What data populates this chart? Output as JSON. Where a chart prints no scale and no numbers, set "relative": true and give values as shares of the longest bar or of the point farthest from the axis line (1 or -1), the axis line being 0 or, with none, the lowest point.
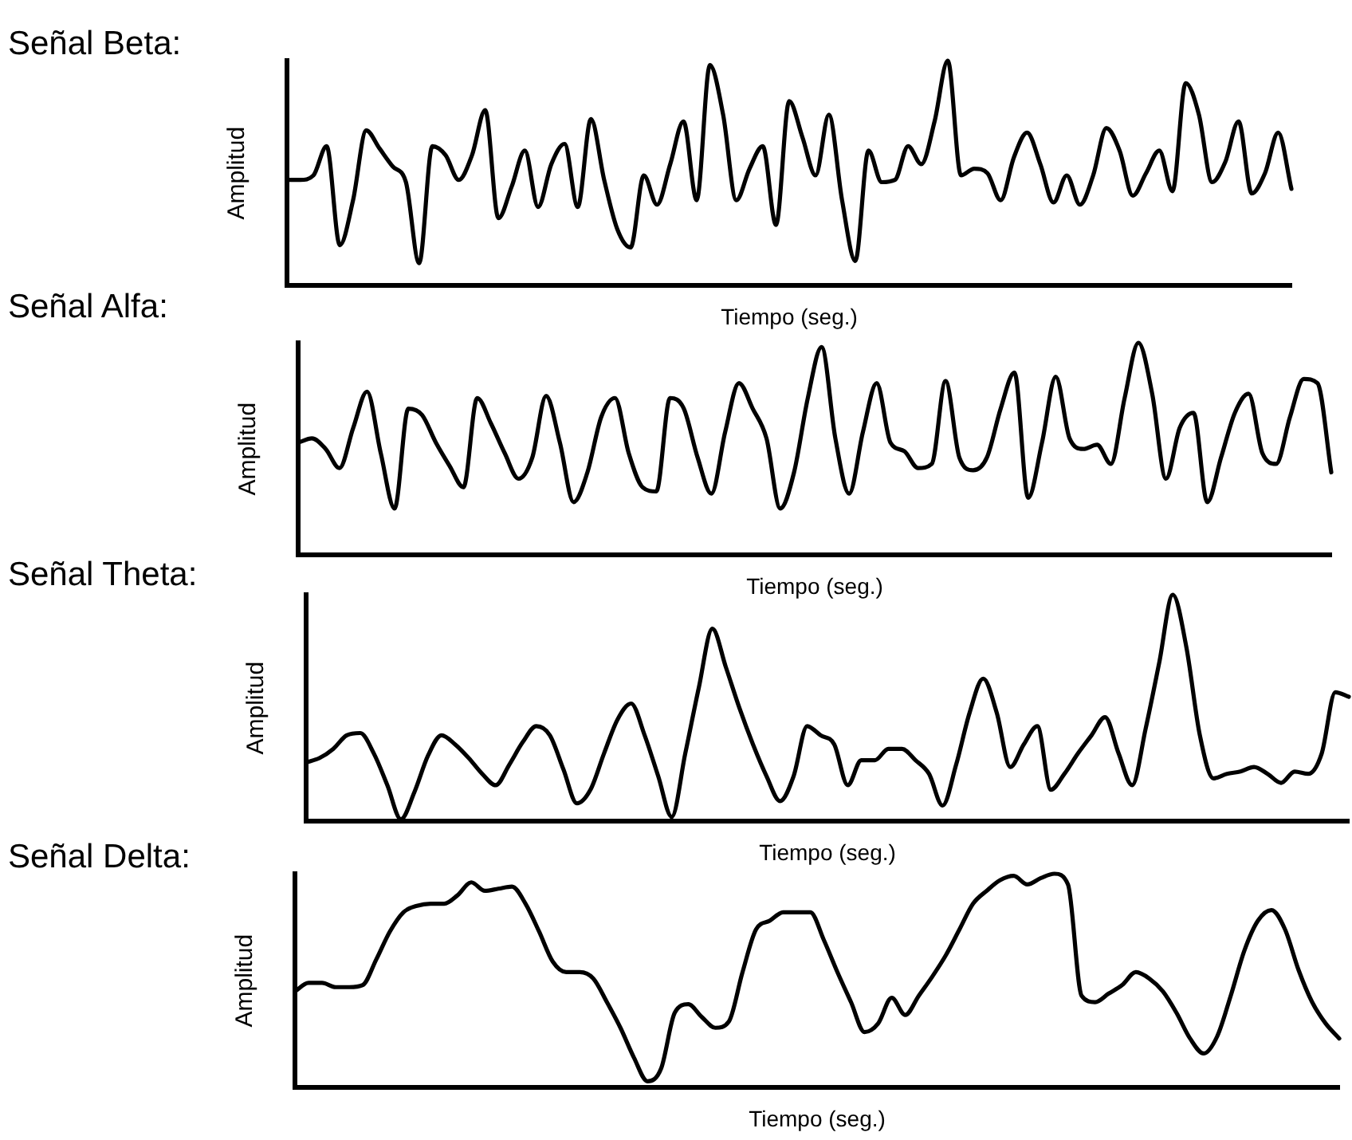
{
  "chart_data": [
    {
      "type": "line",
      "title": "Señal Beta:",
      "xlabel": "Tiempo (seg.)",
      "ylabel": "Amplitud",
      "relative": true,
      "color": "#000000",
      "categories": [
        null,
        null,
        null,
        null,
        null,
        null,
        null,
        null,
        null,
        null,
        null,
        null,
        null,
        null,
        null,
        null,
        null,
        null,
        null,
        null,
        null,
        null,
        null,
        null,
        null,
        null,
        null,
        null,
        null,
        null,
        null,
        null,
        null,
        null,
        null,
        null,
        null,
        null,
        null,
        null,
        null,
        null,
        null,
        null,
        null,
        null,
        null,
        null,
        null,
        null,
        null,
        null,
        null,
        null,
        null,
        null,
        null,
        null,
        null,
        null,
        null,
        null,
        null,
        null,
        null,
        null,
        null,
        null,
        null,
        null,
        null,
        null,
        null,
        null,
        null,
        null,
        null
      ],
      "values": [
        0.47,
        0.47,
        0.49,
        0.62,
        0.18,
        0.38,
        0.69,
        0.61,
        0.53,
        0.46,
        0.1,
        0.62,
        0.58,
        0.47,
        0.58,
        0.78,
        0.3,
        0.44,
        0.6,
        0.35,
        0.54,
        0.63,
        0.35,
        0.74,
        0.47,
        0.25,
        0.17,
        0.49,
        0.36,
        0.54,
        0.73,
        0.38,
        0.98,
        0.76,
        0.38,
        0.52,
        0.62,
        0.27,
        0.82,
        0.66,
        0.49,
        0.76,
        0.38,
        0.11,
        0.6,
        0.46,
        0.47,
        0.62,
        0.54,
        0.73,
        1,
        0.49,
        0.52,
        0.5,
        0.38,
        0.57,
        0.68,
        0.54,
        0.37,
        0.49,
        0.36,
        0.49,
        0.7,
        0.6,
        0.4,
        0.5,
        0.6,
        0.42,
        0.9,
        0.76,
        0.46,
        0.55,
        0.73,
        0.41,
        0.5,
        0.68,
        0.43
      ]
    },
    {
      "type": "line",
      "title": "Señal Alfa:",
      "xlabel": "Tiempo (seg.)",
      "ylabel": "Amplitud",
      "relative": true,
      "color": "#000000",
      "categories": [
        null,
        null,
        null,
        null,
        null,
        null,
        null,
        null,
        null,
        null,
        null,
        null,
        null,
        null,
        null,
        null,
        null,
        null,
        null,
        null,
        null,
        null,
        null,
        null,
        null,
        null,
        null,
        null,
        null,
        null,
        null,
        null,
        null,
        null,
        null,
        null,
        null,
        null,
        null,
        null,
        null,
        null,
        null,
        null,
        null,
        null,
        null,
        null,
        null,
        null,
        null,
        null,
        null,
        null,
        null,
        null,
        null,
        null,
        null,
        null,
        null,
        null,
        null,
        null,
        null,
        null,
        null,
        null,
        null,
        null,
        null,
        null,
        null,
        null,
        null,
        null
      ],
      "values": [
        0.53,
        0.55,
        0.5,
        0.41,
        0.6,
        0.77,
        0.48,
        0.22,
        0.69,
        0.66,
        0.53,
        0.42,
        0.32,
        0.74,
        0.62,
        0.48,
        0.36,
        0.46,
        0.75,
        0.53,
        0.25,
        0.39,
        0.65,
        0.74,
        0.48,
        0.32,
        0.3,
        0.74,
        0.69,
        0.46,
        0.29,
        0.58,
        0.81,
        0.69,
        0.55,
        0.22,
        0.39,
        0.74,
        0.98,
        0.55,
        0.29,
        0.58,
        0.81,
        0.53,
        0.49,
        0.41,
        0.43,
        0.82,
        0.46,
        0.4,
        0.46,
        0.69,
        0.86,
        0.27,
        0.53,
        0.84,
        0.55,
        0.5,
        0.52,
        0.43,
        0.74,
        1,
        0.76,
        0.36,
        0.6,
        0.67,
        0.25,
        0.46,
        0.67,
        0.76,
        0.48,
        0.43,
        0.65,
        0.83,
        0.81,
        0.39
      ]
    },
    {
      "type": "line",
      "title": "Señal Theta:",
      "xlabel": "Tiempo (seg.)",
      "ylabel": "Amplitud",
      "relative": true,
      "color": "#000000",
      "categories": [
        null,
        null,
        null,
        null,
        null,
        null,
        null,
        null,
        null,
        null,
        null,
        null,
        null,
        null,
        null,
        null,
        null,
        null,
        null,
        null,
        null,
        null,
        null,
        null,
        null,
        null,
        null,
        null,
        null,
        null,
        null,
        null,
        null,
        null,
        null,
        null,
        null,
        null,
        null,
        null,
        null,
        null,
        null,
        null,
        null,
        null,
        null,
        null,
        null,
        null,
        null,
        null,
        null,
        null,
        null,
        null,
        null,
        null,
        null,
        null,
        null,
        null,
        null,
        null,
        null,
        null,
        null,
        null,
        null,
        null,
        null,
        null,
        null,
        null,
        null,
        null,
        null,
        null
      ],
      "values": [
        0.26,
        0.28,
        0.32,
        0.38,
        0.39,
        0.3,
        0.16,
        0.01,
        0.13,
        0.29,
        0.38,
        0.34,
        0.28,
        0.21,
        0.16,
        0.25,
        0.35,
        0.42,
        0.38,
        0.23,
        0.08,
        0.14,
        0.3,
        0.45,
        0.52,
        0.38,
        0.2,
        0.02,
        0.3,
        0.59,
        0.85,
        0.68,
        0.5,
        0.34,
        0.2,
        0.09,
        0.2,
        0.42,
        0.38,
        0.34,
        0.16,
        0.27,
        0.27,
        0.32,
        0.32,
        0.27,
        0.21,
        0.07,
        0.25,
        0.48,
        0.63,
        0.48,
        0.24,
        0.34,
        0.42,
        0.14,
        0.21,
        0.3,
        0.38,
        0.46,
        0.3,
        0.16,
        0.41,
        0.7,
        1,
        0.77,
        0.38,
        0.19,
        0.21,
        0.22,
        0.24,
        0.21,
        0.17,
        0.22,
        0.21,
        0.3,
        0.57,
        0.55
      ]
    },
    {
      "type": "line",
      "title": "Señal Delta:",
      "xlabel": "Tiempo (seg.)",
      "ylabel": "Amplitud",
      "relative": true,
      "color": "#000000",
      "categories": [
        null,
        null,
        null,
        null,
        null,
        null,
        null,
        null,
        null,
        null,
        null,
        null,
        null,
        null,
        null,
        null,
        null,
        null,
        null,
        null,
        null,
        null,
        null,
        null,
        null,
        null,
        null,
        null,
        null,
        null,
        null,
        null,
        null,
        null,
        null,
        null,
        null,
        null,
        null,
        null,
        null,
        null,
        null,
        null,
        null,
        null,
        null,
        null,
        null,
        null,
        null,
        null,
        null,
        null,
        null,
        null,
        null,
        null,
        null,
        null,
        null,
        null,
        null,
        null,
        null,
        null,
        null,
        null,
        null,
        null,
        null,
        null,
        null,
        null,
        null,
        null,
        null,
        null
      ],
      "values": [
        0.45,
        0.49,
        0.49,
        0.47,
        0.47,
        0.48,
        0.6,
        0.73,
        0.82,
        0.85,
        0.86,
        0.86,
        0.9,
        0.96,
        0.92,
        0.93,
        0.94,
        0.86,
        0.73,
        0.59,
        0.54,
        0.54,
        0.51,
        0.4,
        0.28,
        0.14,
        0.03,
        0.09,
        0.35,
        0.39,
        0.33,
        0.28,
        0.31,
        0.54,
        0.74,
        0.78,
        0.82,
        0.82,
        0.82,
        0.69,
        0.54,
        0.4,
        0.26,
        0.3,
        0.42,
        0.34,
        0.43,
        0.52,
        0.62,
        0.74,
        0.86,
        0.92,
        0.97,
        0.99,
        0.95,
        0.98,
        1,
        0.95,
        0.43,
        0.4,
        0.44,
        0.48,
        0.54,
        0.51,
        0.45,
        0.35,
        0.23,
        0.16,
        0.24,
        0.43,
        0.64,
        0.78,
        0.83,
        0.74,
        0.55,
        0.4,
        0.3,
        0.23
      ]
    }
  ]
}
